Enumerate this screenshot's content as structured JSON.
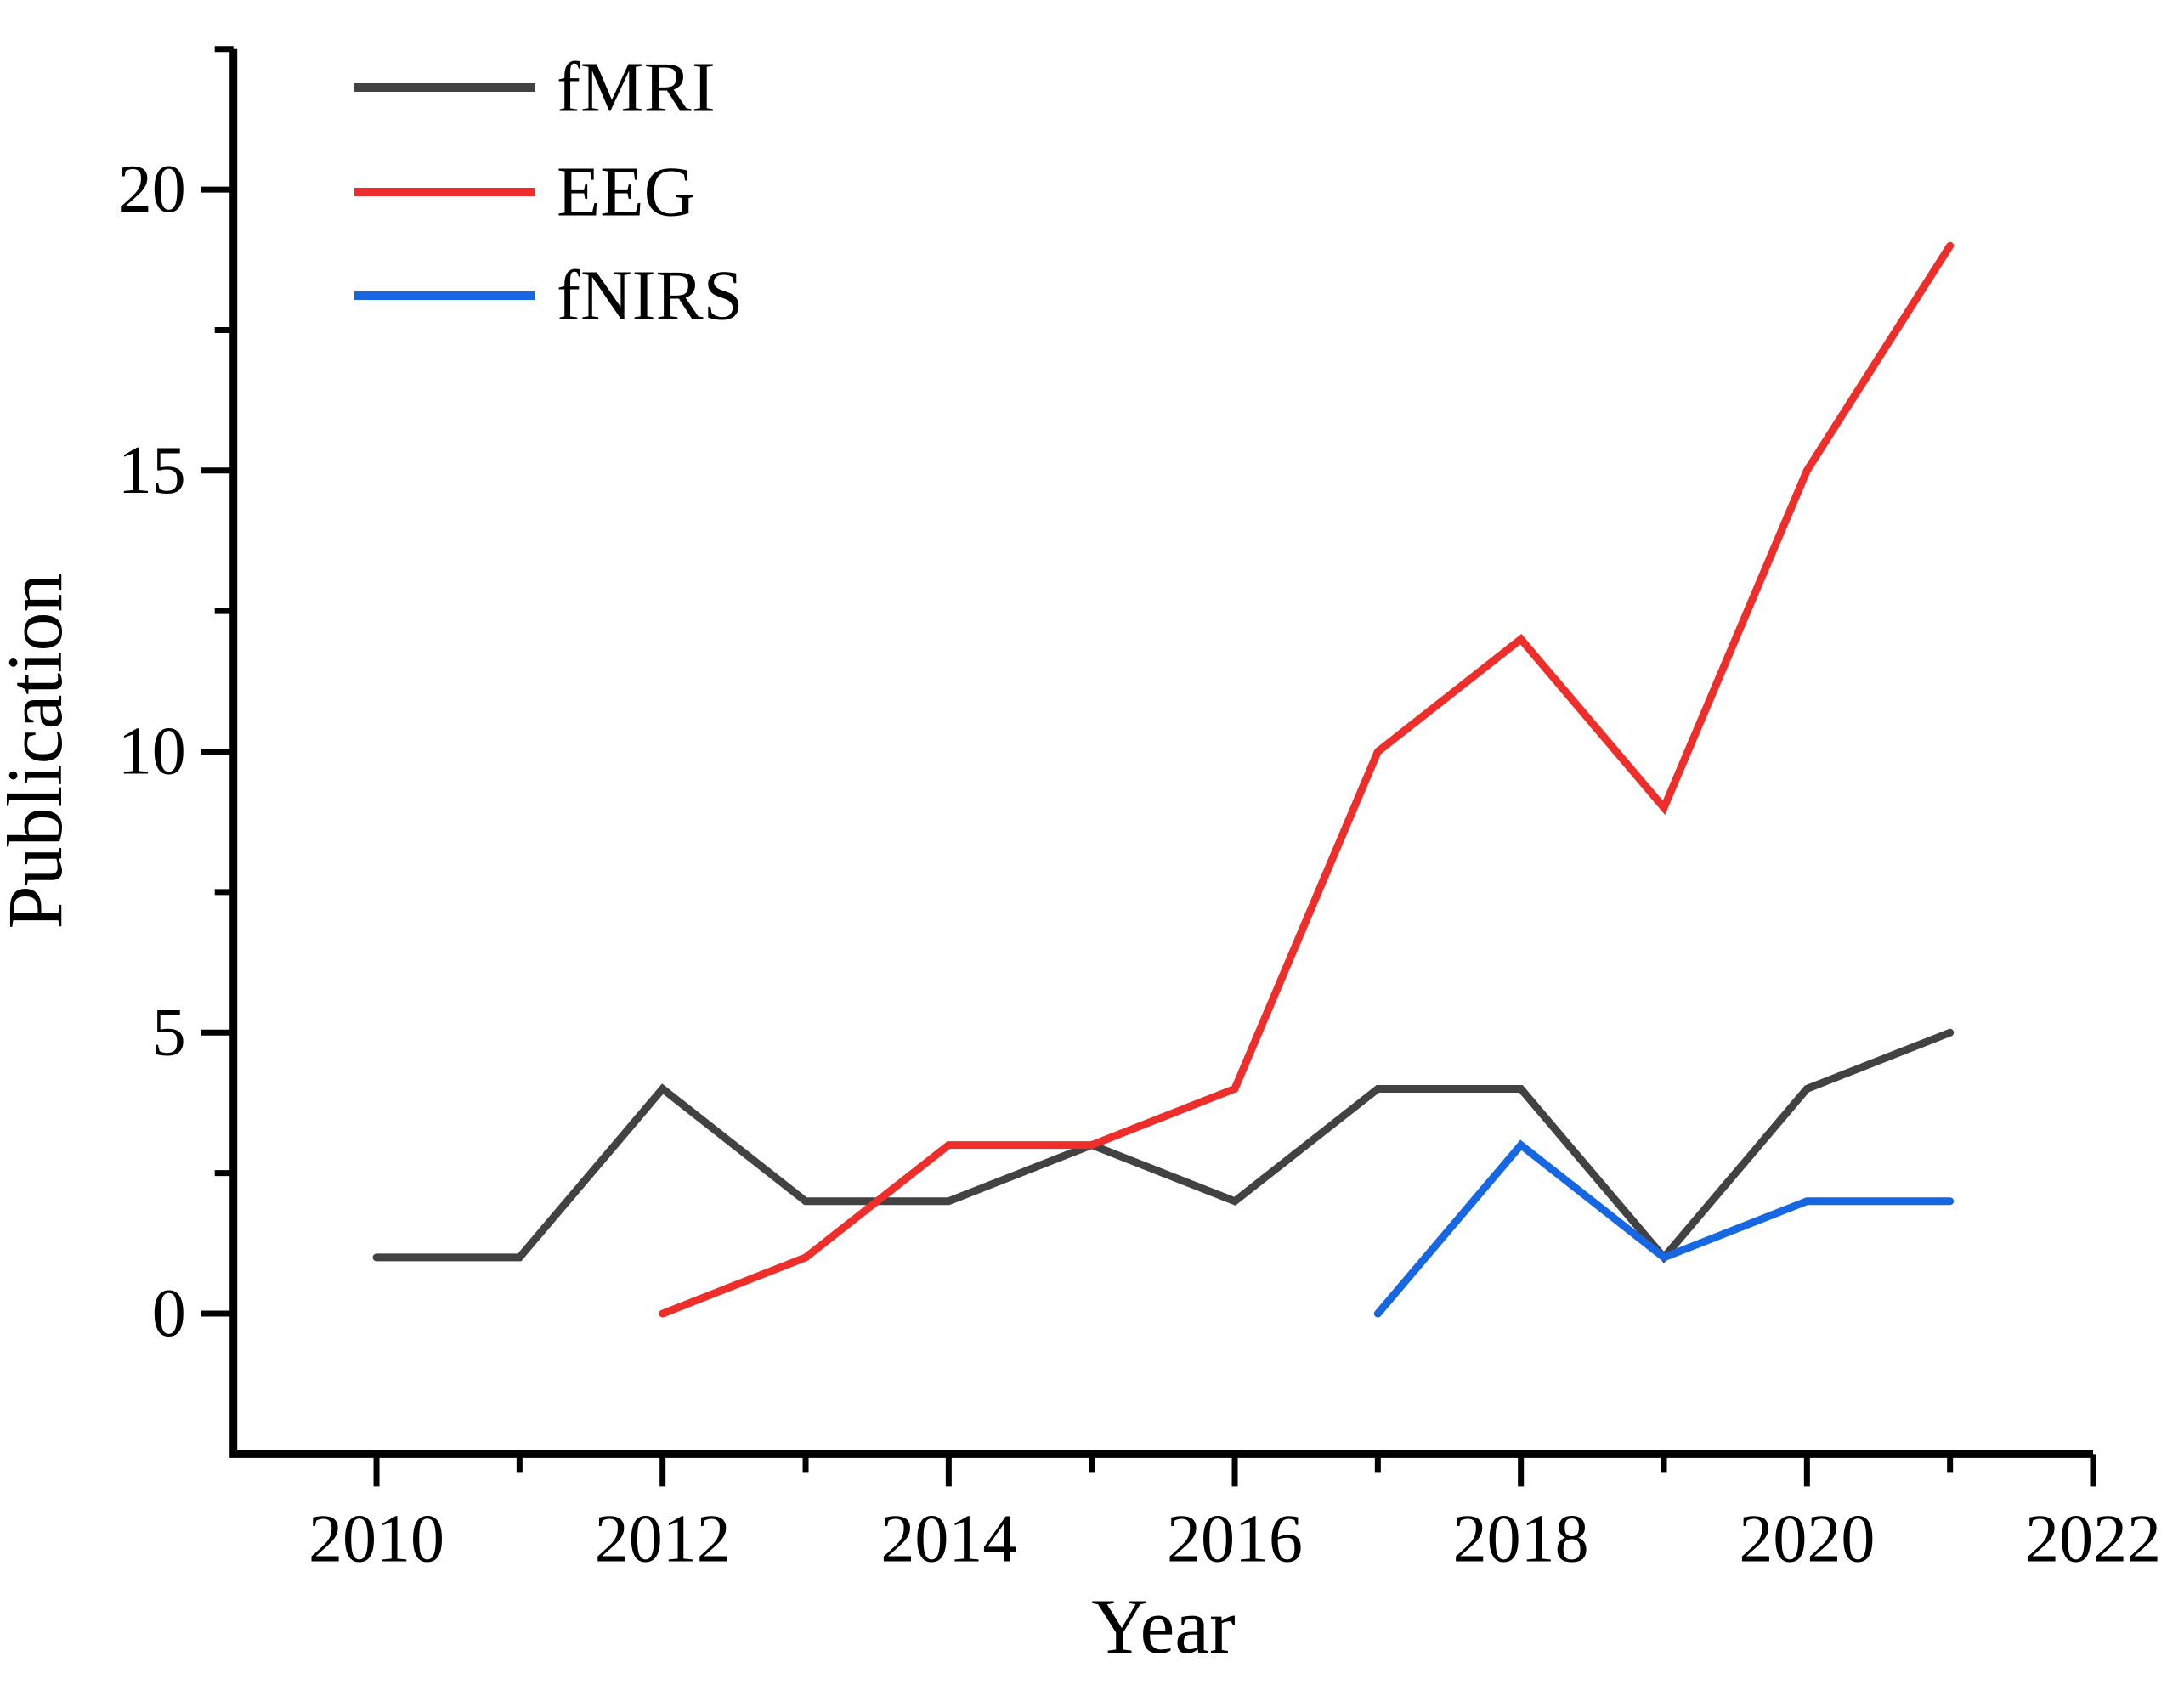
{
  "chart_data": {
    "type": "line",
    "title": "",
    "xlabel": "Year",
    "ylabel": "Publication",
    "xlim": [
      2009,
      2022
    ],
    "ylim": [
      -2.5,
      22.5
    ],
    "x_major_ticks": [
      2010,
      2012,
      2014,
      2016,
      2018,
      2020,
      2022
    ],
    "x_minor_ticks": [
      2011,
      2013,
      2015,
      2017,
      2019,
      2021
    ],
    "y_major_ticks": [
      0,
      5,
      10,
      15,
      20
    ],
    "y_minor_ticks": [
      2.5,
      7.5,
      12.5,
      17.5,
      22.5
    ],
    "grid": false,
    "legend_position": "top-left",
    "series": [
      {
        "name": "fMRI",
        "color": "#424242",
        "x": [
          2010,
          2011,
          2012,
          2013,
          2014,
          2015,
          2016,
          2017,
          2018,
          2019,
          2020,
          2021
        ],
        "values": [
          1,
          1,
          4,
          2,
          2,
          3,
          2,
          4,
          4,
          1,
          4,
          5
        ]
      },
      {
        "name": "EEG",
        "color": "#ee2e2b",
        "x": [
          2012,
          2013,
          2014,
          2015,
          2016,
          2017,
          2018,
          2019,
          2020,
          2021
        ],
        "values": [
          0,
          1,
          3,
          3,
          4,
          10,
          12,
          9,
          15,
          19
        ]
      },
      {
        "name": "fNIRS",
        "color": "#1767e3",
        "x": [
          2017,
          2018,
          2019,
          2020,
          2021
        ],
        "values": [
          0,
          3,
          1,
          2,
          2
        ]
      }
    ]
  },
  "legend": {
    "items": [
      {
        "label": "fMRI",
        "color": "#424242"
      },
      {
        "label": "EEG",
        "color": "#ee2e2b"
      },
      {
        "label": "fNIRS",
        "color": "#1767e3"
      }
    ]
  },
  "axes": {
    "x_label": "Year",
    "y_label": "Publication"
  }
}
